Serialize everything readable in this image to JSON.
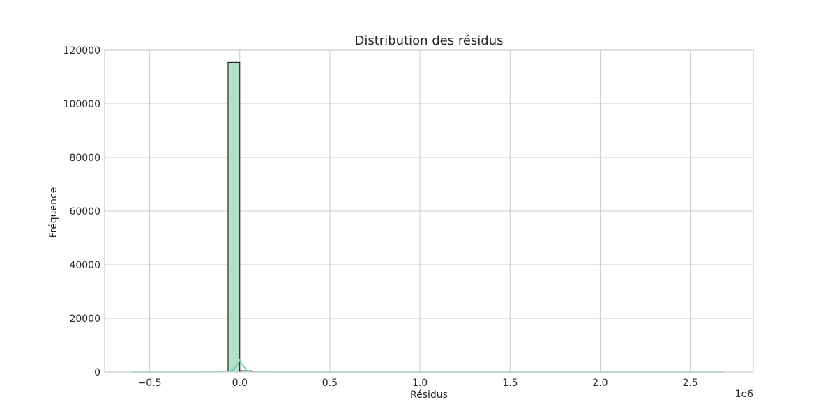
{
  "chart_data": {
    "type": "bar",
    "title": "Distribution des résidus",
    "xlabel": "Résidus",
    "ylabel": "Fréquence",
    "x_offset_label": "1e6",
    "x_scale_multiplier": 1000000,
    "xlim": [
      -0.75,
      2.85
    ],
    "ylim": [
      0,
      120000
    ],
    "x_ticks": [
      -0.5,
      0.0,
      0.5,
      1.0,
      1.5,
      2.0,
      2.5
    ],
    "x_tick_labels": [
      "−0.5",
      "0.0",
      "0.5",
      "1.0",
      "1.5",
      "2.0",
      "2.5"
    ],
    "y_ticks": [
      0,
      20000,
      40000,
      60000,
      80000,
      100000,
      120000
    ],
    "y_tick_labels": [
      "0",
      "20000",
      "40000",
      "60000",
      "80000",
      "100000",
      "120000"
    ],
    "grid": true,
    "bins": [
      {
        "x0": -0.065,
        "x1": 0.0,
        "count": 115500
      },
      {
        "x0": 0.0,
        "x1": 0.065,
        "count": 500
      }
    ],
    "kde": {
      "x": [
        -0.6,
        -0.3,
        -0.1,
        -0.04,
        -0.01,
        0.0,
        0.01,
        0.04,
        0.1,
        0.3,
        1.0,
        2.0,
        2.68
      ],
      "y": [
        0,
        0,
        50,
        600,
        3000,
        4500,
        3000,
        600,
        50,
        0,
        0,
        0,
        0
      ]
    },
    "colors": {
      "bar_fill": "#b3dfcb",
      "bar_edge": "#000000",
      "kde_line": "#66c2a5",
      "grid": "#cccccc",
      "text": "#262626"
    }
  }
}
